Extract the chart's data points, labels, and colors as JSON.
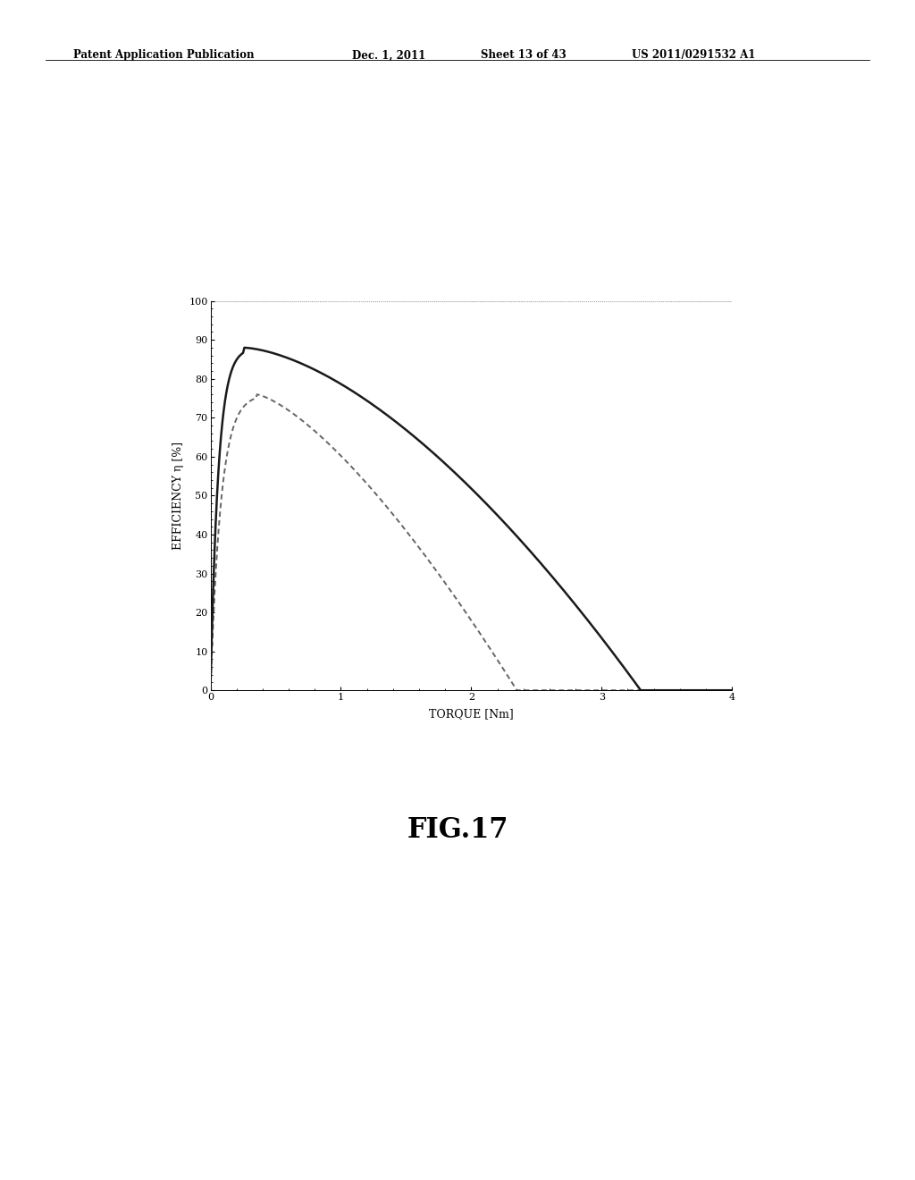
{
  "title_header": "Patent Application Publication",
  "title_date": "Dec. 1, 2011",
  "title_sheet": "Sheet 13 of 43",
  "title_patent": "US 2011/0291532 A1",
  "fig_label": "FIG.17",
  "xlabel": "TORQUE [Nm]",
  "ylabel": "EFFICIENCY η [%]",
  "xlim": [
    0,
    4
  ],
  "ylim": [
    0,
    100
  ],
  "xticks": [
    0,
    1,
    2,
    3,
    4
  ],
  "yticks": [
    0,
    10,
    20,
    30,
    40,
    50,
    60,
    70,
    80,
    90,
    100
  ],
  "curve1_peak_x": 0.25,
  "curve1_peak_y": 88,
  "curve1_rise_tau": 0.06,
  "curve1_end_x": 3.3,
  "curve2_peak_x": 0.35,
  "curve2_peak_y": 76,
  "curve2_rise_tau": 0.08,
  "curve2_end_x": 2.35,
  "background_color": "#ffffff",
  "line1_color": "#1a1a1a",
  "line2_color": "#666666",
  "linewidth_solid": 1.8,
  "linewidth_dashed": 1.4,
  "header_fontsize": 8.5,
  "fig_label_fontsize": 22,
  "axis_label_fontsize": 9,
  "tick_fontsize": 8
}
